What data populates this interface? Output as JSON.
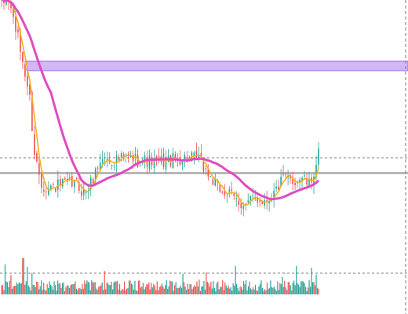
{
  "chart_data": {
    "type": "candlestick",
    "title": "",
    "xlabel": "",
    "ylabel": "",
    "grid": false,
    "legend": "none",
    "bar_count": 136,
    "ylim": [
      0,
      100
    ],
    "control_points": [
      [
        0,
        98
      ],
      [
        3,
        100
      ],
      [
        6,
        88
      ],
      [
        9,
        74
      ],
      [
        12,
        58
      ],
      [
        14,
        35
      ],
      [
        17,
        22
      ],
      [
        20,
        20
      ],
      [
        24,
        21
      ],
      [
        28,
        22
      ],
      [
        32,
        22
      ],
      [
        35,
        18
      ],
      [
        38,
        22
      ],
      [
        42,
        32
      ],
      [
        48,
        32
      ],
      [
        54,
        33
      ],
      [
        60,
        32
      ],
      [
        66,
        31
      ],
      [
        72,
        32
      ],
      [
        78,
        33
      ],
      [
        84,
        32
      ],
      [
        88,
        26
      ],
      [
        92,
        20
      ],
      [
        96,
        18
      ],
      [
        100,
        15
      ],
      [
        104,
        13
      ],
      [
        108,
        16
      ],
      [
        112,
        15
      ],
      [
        116,
        18
      ],
      [
        120,
        24
      ],
      [
        124,
        23
      ],
      [
        128,
        25
      ],
      [
        131,
        21
      ],
      [
        133,
        27
      ],
      [
        135,
        34
      ]
    ],
    "zones": [
      {
        "type": "resistance_band",
        "from": 70,
        "to": 74,
        "color": "#c39ef5"
      }
    ],
    "reference_lines": [
      {
        "value": 26.5,
        "style": "solid",
        "color": "#b8b8b8"
      },
      {
        "value": 33,
        "style": "dashed",
        "color": "#555555"
      }
    ],
    "indicators": [
      {
        "kind": "moving_average",
        "period": 4,
        "color": "#f0b020"
      },
      {
        "kind": "moving_average",
        "period": 22,
        "color": "#e04cc0"
      }
    ],
    "volume_panel": true,
    "colors": {
      "up": "#26a69a",
      "down": "#ef5350"
    }
  }
}
